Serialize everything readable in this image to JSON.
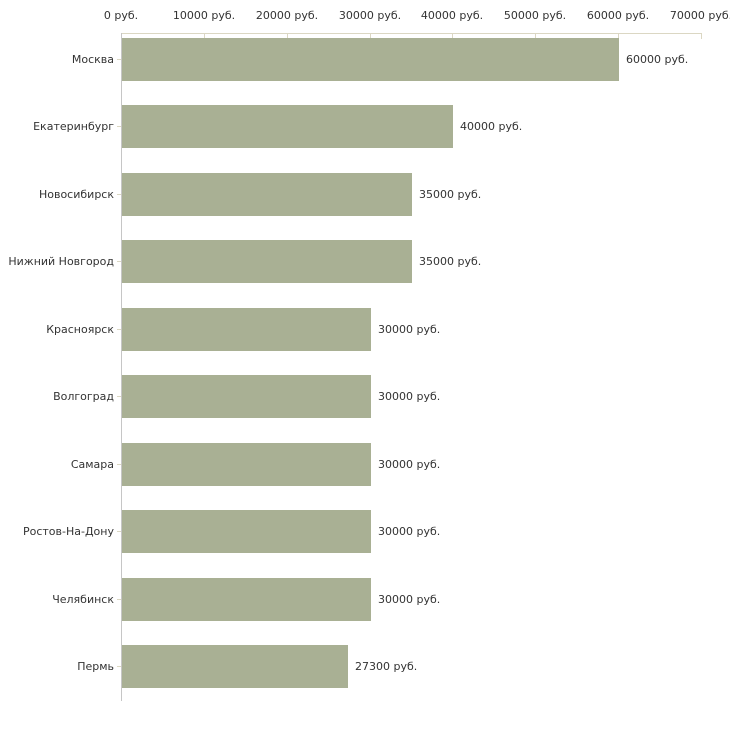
{
  "chart_data": {
    "type": "bar",
    "orientation": "horizontal",
    "categories": [
      "Москва",
      "Екатеринбург",
      "Новосибирск",
      "Нижний Новгород",
      "Красноярск",
      "Волгоград",
      "Самара",
      "Ростов-На-Дону",
      "Челябинск",
      "Пермь"
    ],
    "values": [
      60000,
      40000,
      35000,
      35000,
      30000,
      30000,
      30000,
      30000,
      30000,
      27300
    ],
    "value_labels": [
      "60000 руб.",
      "40000 руб.",
      "35000 руб.",
      "35000 руб.",
      "30000 руб.",
      "30000 руб.",
      "30000 руб.",
      "30000 руб.",
      "30000 руб.",
      "27300 руб."
    ],
    "unit": "руб.",
    "x_axis": {
      "position": "top",
      "range": [
        0,
        70000
      ],
      "ticks": [
        0,
        10000,
        20000,
        30000,
        40000,
        50000,
        60000,
        70000
      ],
      "tick_labels": [
        "0 руб.",
        "10000 руб.",
        "20000 руб.",
        "30000 руб.",
        "40000 руб.",
        "50000 руб.",
        "60000 руб.",
        "70000 руб."
      ]
    },
    "grid": false,
    "legend": false,
    "colors": {
      "bar": "#a9b094",
      "axis_top": "#dbd7c3",
      "axis_left": "#c6c6c6",
      "text": "#333333"
    }
  }
}
